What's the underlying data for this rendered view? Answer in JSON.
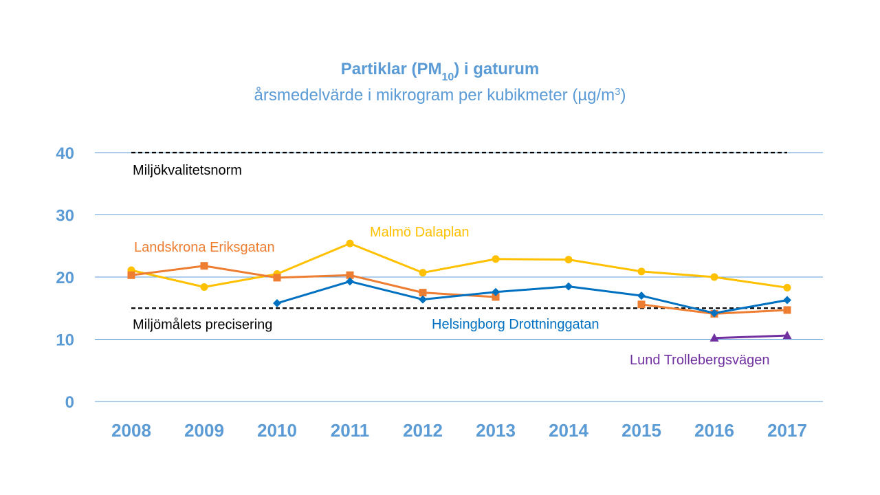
{
  "chart_data": {
    "type": "line",
    "title": "Partiklar (PM",
    "title_subscript": "10",
    "title_suffix": ") i gaturum",
    "subtitle": "årsmedelvärde i mikrogram per kubikmeter (µg/m",
    "subtitle_superscript": "3",
    "subtitle_suffix": ")",
    "x": [
      "2008",
      "2009",
      "2010",
      "2011",
      "2012",
      "2013",
      "2014",
      "2015",
      "2016",
      "2017"
    ],
    "ylim": [
      0,
      40
    ],
    "yticks": [
      "0",
      "10",
      "20",
      "30",
      "40"
    ],
    "grid": true,
    "series": [
      {
        "name": "Malmö Dalaplan",
        "color": "#FFC000",
        "marker": "circle",
        "values": [
          21.1,
          18.4,
          20.5,
          25.4,
          20.7,
          22.9,
          22.8,
          20.9,
          20.0,
          18.3
        ]
      },
      {
        "name": "Landskrona Eriksgatan",
        "color": "#ED7D31",
        "marker": "square",
        "values": [
          20.3,
          21.8,
          19.9,
          20.3,
          17.5,
          16.8,
          null,
          15.6,
          14.1,
          14.7
        ]
      },
      {
        "name": "Helsingborg Drottninggatan",
        "color": "#0070C0",
        "marker": "diamond",
        "values": [
          null,
          null,
          15.8,
          19.3,
          16.4,
          17.6,
          18.5,
          17.0,
          14.2,
          16.3
        ]
      },
      {
        "name": "Lund Trollebergsvägen",
        "color": "#7030A0",
        "marker": "triangle",
        "values": [
          null,
          null,
          null,
          null,
          null,
          null,
          null,
          null,
          10.2,
          10.6
        ]
      }
    ],
    "reference_lines": [
      {
        "label": "Miljökvalitetsnorm",
        "value": 40,
        "color": "#000000"
      },
      {
        "label": "Miljömålets precisering",
        "value": 15,
        "color": "#000000"
      }
    ],
    "colors": {
      "title": "#5B9BD5",
      "axis_labels": "#5B9BD5",
      "grid": "#5B9BD5"
    }
  }
}
